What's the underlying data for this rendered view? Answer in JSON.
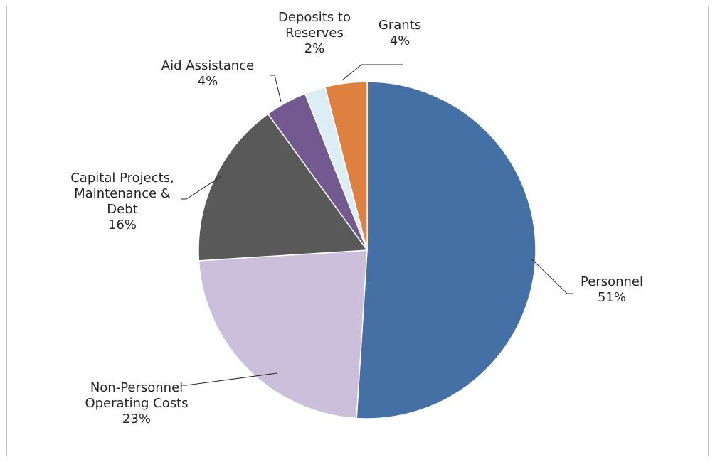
{
  "chart_data": {
    "type": "pie",
    "title": "",
    "start": "top, clockwise",
    "slices": [
      {
        "label": "Personnel",
        "pct_label": "51%",
        "value": 51,
        "color": "#4470A5"
      },
      {
        "label": "Non-Personnel Operating Costs",
        "label_lines": [
          "Non-Personnel",
          "Operating Costs"
        ],
        "pct_label": "23%",
        "value": 23,
        "color": "#CBBFDC"
      },
      {
        "label": "Capital Projects, Maintenance & Debt",
        "label_lines": [
          "Capital Projects,",
          "Maintenance &",
          "Debt"
        ],
        "pct_label": "16%",
        "value": 16,
        "color": "#595959"
      },
      {
        "label": "Aid Assistance",
        "pct_label": "4%",
        "value": 4,
        "color": "#725990"
      },
      {
        "label": "Deposits to Reserves",
        "label_lines": [
          "Deposits to",
          "Reserves"
        ],
        "pct_label": "2%",
        "value": 2,
        "color": "#DAEEF3"
      },
      {
        "label": "Grants",
        "pct_label": "4%",
        "value": 4,
        "color": "#DD8040"
      }
    ]
  }
}
